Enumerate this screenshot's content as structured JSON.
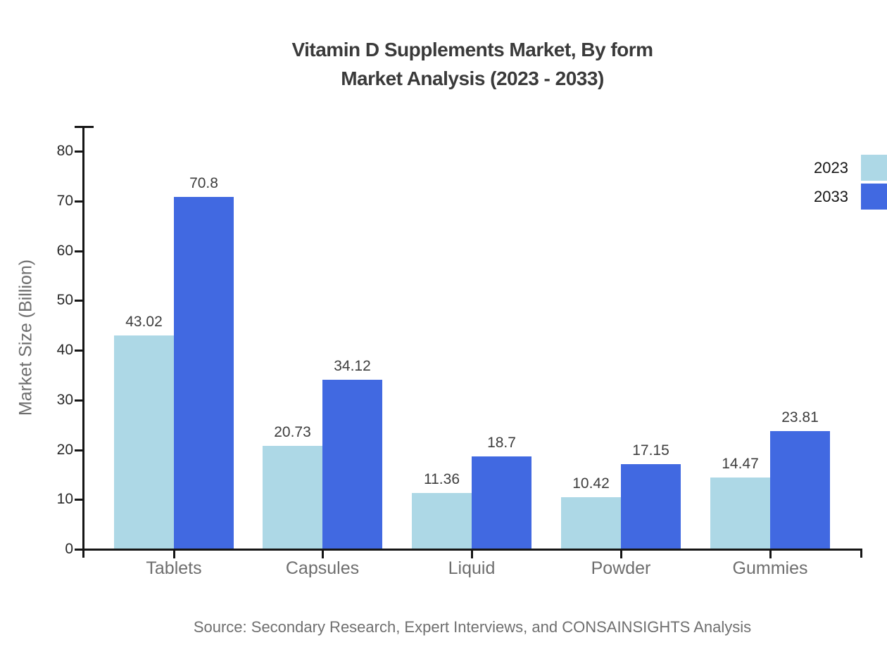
{
  "title": {
    "line1": "Vitamin D Supplements Market, By form",
    "line2": "Market Analysis (2023 - 2033)"
  },
  "source_note": "Source: Secondary Research, Expert Interviews, and CONSAINSIGHTS Analysis",
  "chart_data": {
    "type": "bar",
    "categories": [
      "Tablets",
      "Capsules",
      "Liquid",
      "Powder",
      "Gummies"
    ],
    "series": [
      {
        "name": "2023",
        "color": "#ADD8E6",
        "values": [
          43.02,
          20.73,
          11.36,
          10.42,
          14.47
        ]
      },
      {
        "name": "2033",
        "color": "#4169E1",
        "values": [
          70.8,
          34.12,
          18.7,
          17.15,
          23.81
        ]
      }
    ],
    "value_labels": [
      "43.02",
      "70.8",
      "20.73",
      "34.12",
      "11.36",
      "18.7",
      "10.42",
      "17.15",
      "14.47",
      "23.81"
    ],
    "title": "Vitamin D Supplements Market, By form Market Analysis (2023 - 2033)",
    "xlabel": "",
    "ylabel": "Market Size (Billion)",
    "ylim": [
      0,
      80
    ],
    "ytick_step": 10,
    "ytick_labels": [
      "0",
      "10",
      "20",
      "30",
      "40",
      "50",
      "60",
      "70",
      "80"
    ],
    "grid": false,
    "legend_position": "top-right",
    "bar_value_labels_shown": true
  },
  "colors": {
    "series_2023": "#ADD8E6",
    "series_2033": "#4169E1",
    "axis": "#161616",
    "title_text": "#3a3a3a",
    "category_label": "#6e6e6e",
    "axis_title": "#6e6e6e",
    "value_label": "#3d3d3d",
    "source_text": "#6f6f6f"
  }
}
